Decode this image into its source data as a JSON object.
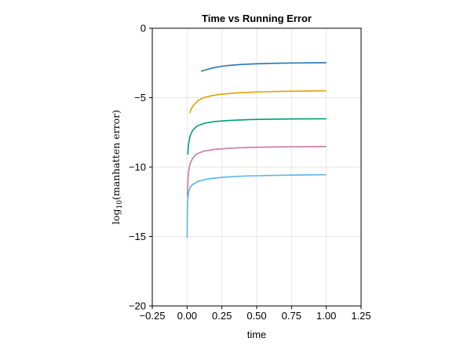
{
  "chart_data": {
    "type": "line",
    "title": "Time vs Running Error",
    "xlabel": "time",
    "ylabel": {
      "prefix": "log",
      "subscript": "10",
      "suffix": "(manhatten error)"
    },
    "xlim": [
      -0.25,
      1.25
    ],
    "ylim": [
      -20,
      0
    ],
    "xticks": [
      -0.25,
      0.0,
      0.25,
      0.5,
      0.75,
      1.0,
      1.25
    ],
    "xtick_labels": [
      "−0.25",
      "0.00",
      "0.25",
      "0.50",
      "0.75",
      "1.00",
      "1.25"
    ],
    "yticks": [
      -20,
      -15,
      -10,
      -5,
      0
    ],
    "ytick_labels": [
      "−20",
      "−15",
      "−10",
      "−5",
      "0"
    ],
    "grid": true,
    "series": [
      {
        "color": "#1f77b4",
        "x": [
          0.1,
          0.15,
          0.2,
          0.25,
          0.3,
          0.4,
          0.5,
          0.6,
          0.7,
          0.8,
          0.9,
          1.0
        ],
        "y": [
          -3.1,
          -2.95,
          -2.83,
          -2.74,
          -2.68,
          -2.6,
          -2.56,
          -2.53,
          -2.51,
          -2.5,
          -2.49,
          -2.48
        ]
      },
      {
        "color": "#e69f00",
        "x": [
          0.02,
          0.03,
          0.05,
          0.08,
          0.12,
          0.18,
          0.25,
          0.35,
          0.5,
          0.65,
          0.8,
          1.0
        ],
        "y": [
          -6.1,
          -5.8,
          -5.5,
          -5.2,
          -5.0,
          -4.85,
          -4.75,
          -4.66,
          -4.59,
          -4.55,
          -4.53,
          -4.5
        ]
      },
      {
        "color": "#009e73",
        "x": [
          0.005,
          0.01,
          0.02,
          0.04,
          0.07,
          0.12,
          0.2,
          0.3,
          0.45,
          0.6,
          0.8,
          1.0
        ],
        "y": [
          -9.1,
          -8.4,
          -7.8,
          -7.35,
          -7.05,
          -6.85,
          -6.72,
          -6.64,
          -6.58,
          -6.55,
          -6.53,
          -6.52
        ]
      },
      {
        "color": "#cc79a7",
        "x": [
          0.002,
          0.005,
          0.01,
          0.02,
          0.04,
          0.07,
          0.12,
          0.2,
          0.35,
          0.5,
          0.7,
          1.0
        ],
        "y": [
          -12.1,
          -11.2,
          -10.4,
          -9.8,
          -9.35,
          -9.05,
          -8.85,
          -8.72,
          -8.62,
          -8.57,
          -8.54,
          -8.52
        ]
      },
      {
        "color": "#56b4e9",
        "x": [
          0.0005,
          0.001,
          0.002,
          0.005,
          0.01,
          0.02,
          0.04,
          0.08,
          0.15,
          0.25,
          0.4,
          0.6,
          0.8,
          1.0
        ],
        "y": [
          -15.1,
          -14.0,
          -13.0,
          -12.3,
          -11.85,
          -11.5,
          -11.25,
          -11.02,
          -10.85,
          -10.74,
          -10.65,
          -10.6,
          -10.57,
          -10.55
        ]
      }
    ]
  }
}
